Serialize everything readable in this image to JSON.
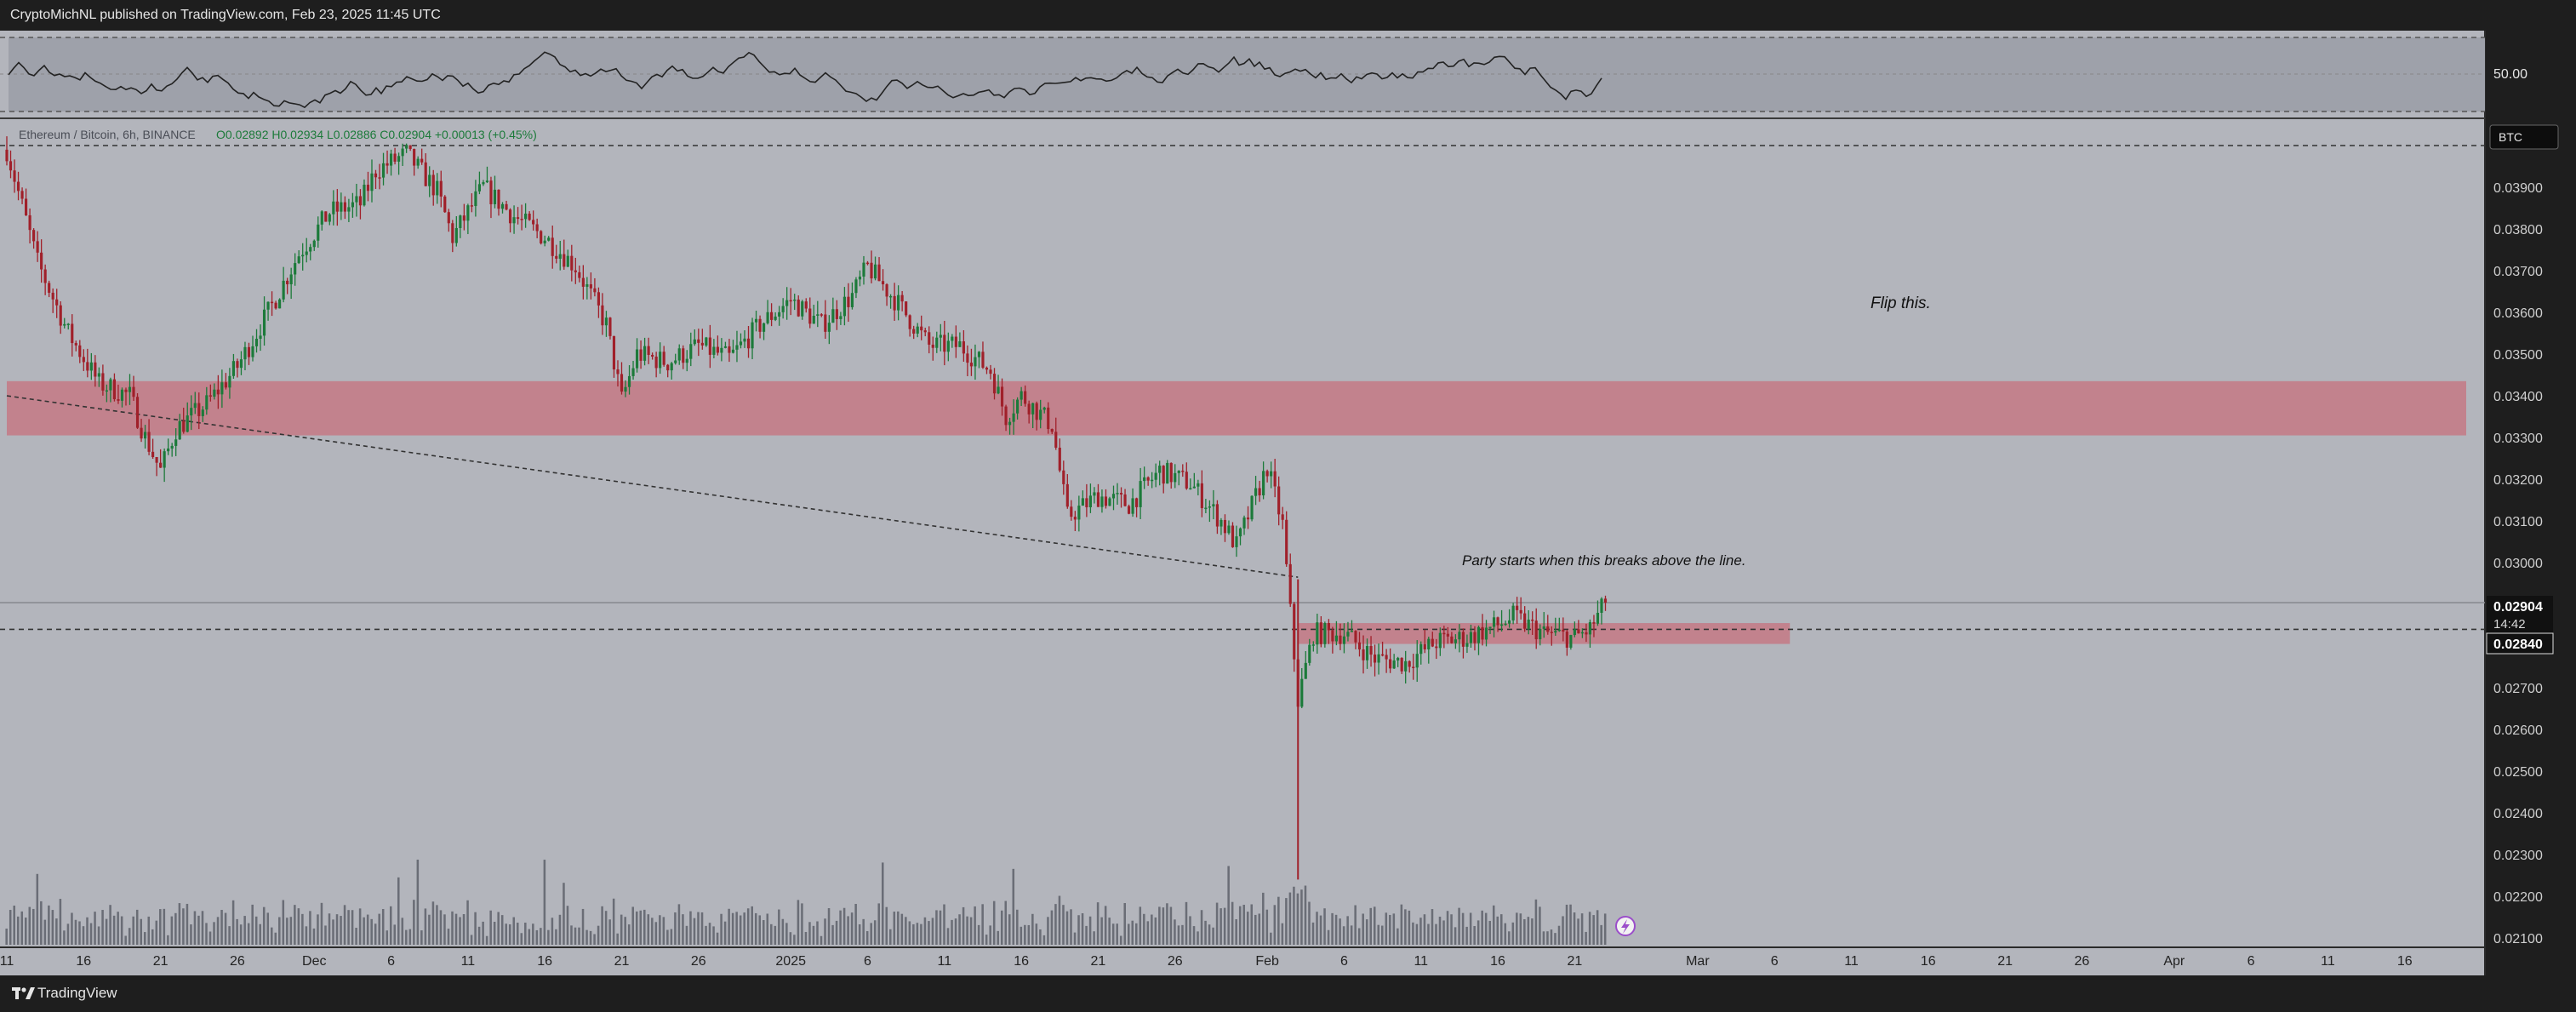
{
  "header": {
    "publisher": "CryptoMichNL published on TradingView.com, Feb 23, 2025 11:45 UTC"
  },
  "footer": {
    "brand": "TradingView"
  },
  "legend": {
    "symbol": "Ethereum / Bitcoin, 6h, BINANCE",
    "ohlc": "O0.02892 H0.02934 L0.02886 C0.02904 +0.00013 (+0.45%)"
  },
  "currency_badge": "BTC",
  "price_tags": {
    "last": "0.02904",
    "countdown": "14:42",
    "line": "0.02840"
  },
  "annotations": {
    "flip": "Flip this.",
    "party": "Party starts when this breaks above the line."
  },
  "rsi_label": "50.00",
  "colors": {
    "up": "#1c7a3a",
    "down": "#a0202a",
    "zone": "#c76f7c",
    "volume": "#6a6d76"
  },
  "icons": {
    "lightning": "lightning-icon"
  },
  "chart_data": {
    "type": "line",
    "y_scale": "linear",
    "ylim": [
      0.021,
      0.0403
    ],
    "y_ticks": [
      "0.03900",
      "0.03800",
      "0.03700",
      "0.03600",
      "0.03500",
      "0.03400",
      "0.03300",
      "0.03200",
      "0.03100",
      "0.03000",
      "0.02900",
      "0.02800",
      "0.02700",
      "0.02600",
      "0.02500",
      "0.02400",
      "0.02300",
      "0.02200",
      "0.02100"
    ],
    "x_ticks": [
      "11",
      "16",
      "21",
      "26",
      "Dec",
      "6",
      "11",
      "16",
      "21",
      "26",
      "2025",
      "6",
      "11",
      "16",
      "21",
      "26",
      "Feb",
      "6",
      "11",
      "16",
      "21",
      "Mar",
      "6",
      "11",
      "16",
      "21",
      "26",
      "Apr",
      "6",
      "11",
      "16"
    ],
    "x_range": [
      "2024-11-11",
      "2025-04-20"
    ],
    "close_path": [
      [
        "2024-11-11",
        0.0399
      ],
      [
        "2024-11-13",
        0.0372
      ],
      [
        "2024-11-15",
        0.0355
      ],
      [
        "2024-11-17",
        0.0343
      ],
      [
        "2024-11-19",
        0.034
      ],
      [
        "2024-11-20",
        0.033
      ],
      [
        "2024-11-21",
        0.0322
      ],
      [
        "2024-11-22",
        0.0332
      ],
      [
        "2024-11-24",
        0.0338
      ],
      [
        "2024-11-26",
        0.0347
      ],
      [
        "2024-11-28",
        0.036
      ],
      [
        "2024-11-30",
        0.0374
      ],
      [
        "2024-12-02",
        0.0384
      ],
      [
        "2024-12-04",
        0.0386
      ],
      [
        "2024-12-05",
        0.0394
      ],
      [
        "2024-12-07",
        0.0398
      ],
      [
        "2024-12-09",
        0.0389
      ],
      [
        "2024-12-10",
        0.0378
      ],
      [
        "2024-12-12",
        0.039
      ],
      [
        "2024-12-14",
        0.0383
      ],
      [
        "2024-12-16",
        0.0378
      ],
      [
        "2024-12-18",
        0.0371
      ],
      [
        "2024-12-20",
        0.0357
      ],
      [
        "2024-12-21",
        0.0339
      ],
      [
        "2024-12-22",
        0.035
      ],
      [
        "2024-12-24",
        0.0348
      ],
      [
        "2024-12-26",
        0.0352
      ],
      [
        "2024-12-28",
        0.0349
      ],
      [
        "2024-12-30",
        0.0357
      ],
      [
        "2025-01-01",
        0.0363
      ],
      [
        "2025-01-03",
        0.0357
      ],
      [
        "2025-01-05",
        0.0364
      ],
      [
        "2025-01-06",
        0.0371
      ],
      [
        "2025-01-08",
        0.0362
      ],
      [
        "2025-01-10",
        0.0352
      ],
      [
        "2025-01-12",
        0.0352
      ],
      [
        "2025-01-14",
        0.0346
      ],
      [
        "2025-01-15",
        0.0335
      ],
      [
        "2025-01-16",
        0.034
      ],
      [
        "2025-01-18",
        0.0333
      ],
      [
        "2025-01-19",
        0.0311
      ],
      [
        "2025-01-21",
        0.0316
      ],
      [
        "2025-01-23",
        0.0314
      ],
      [
        "2025-01-25",
        0.0322
      ],
      [
        "2025-01-27",
        0.0319
      ],
      [
        "2025-01-29",
        0.031
      ],
      [
        "2025-01-30",
        0.0304
      ],
      [
        "2025-02-01",
        0.0323
      ],
      [
        "2025-02-02",
        0.0309
      ],
      [
        "2025-02-03",
        0.0267
      ],
      [
        "2025-02-04",
        0.0283
      ],
      [
        "2025-02-06",
        0.0283
      ],
      [
        "2025-02-08",
        0.0277
      ],
      [
        "2025-02-10",
        0.0276
      ],
      [
        "2025-02-12",
        0.0281
      ],
      [
        "2025-02-14",
        0.0282
      ],
      [
        "2025-02-16",
        0.0285
      ],
      [
        "2025-02-17",
        0.0287
      ],
      [
        "2025-02-19",
        0.0283
      ],
      [
        "2025-02-21",
        0.0282
      ],
      [
        "2025-02-22",
        0.0284
      ],
      [
        "2025-02-23",
        0.02904
      ]
    ],
    "horizontal_lines": [
      {
        "value": 0.04,
        "style": "dashed"
      },
      {
        "value": 0.0284,
        "style": "dashed"
      },
      {
        "value": 0.02904,
        "style": "solid"
      }
    ],
    "trendline": {
      "from": [
        "2024-11-11",
        0.034
      ],
      "to": [
        "2025-02-03",
        0.02965
      ],
      "style": "dashed"
    },
    "zones": [
      {
        "from": "2024-11-11",
        "to": "2025-04-20",
        "low": 0.03305,
        "high": 0.03435
      },
      {
        "from": "2025-02-03",
        "to": "2025-03-07",
        "low": 0.02805,
        "high": 0.02855
      }
    ],
    "rsi": {
      "level_label": 50.0
    }
  }
}
